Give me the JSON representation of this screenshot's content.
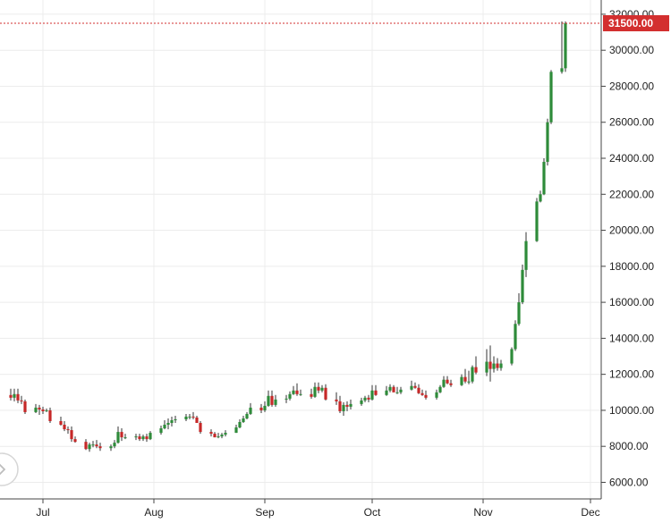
{
  "chart_data": {
    "type": "candlestick",
    "x_tick_labels": [
      "Jul",
      "Aug",
      "Sep",
      "Oct",
      "Nov",
      "Dec"
    ],
    "y_tick_labels": [
      "6000.00",
      "8000.00",
      "10000.00",
      "12000.00",
      "14000.00",
      "16000.00",
      "18000.00",
      "20000.00",
      "22000.00",
      "24000.00",
      "26000.00",
      "28000.00",
      "30000.00",
      "32000.00"
    ],
    "ylim": [
      5000,
      32700
    ],
    "price_line": {
      "value": 31500,
      "label": "31500.00"
    },
    "grid": true,
    "colors": {
      "up": "#2e8b3a",
      "down": "#c62828",
      "wick": "#333333",
      "price_line": "#d32f2f",
      "grid": "#ececec",
      "axis": "#444444"
    },
    "series": [
      {
        "dates": [
          "2020-06-22",
          "2020-06-23",
          "2020-06-24",
          "2020-06-25",
          "2020-06-26",
          "2020-06-29",
          "2020-06-30",
          "2020-07-01",
          "2020-07-02",
          "2020-07-03",
          "2020-07-06",
          "2020-07-07",
          "2020-07-08",
          "2020-07-09",
          "2020-07-10",
          "2020-07-13",
          "2020-07-14",
          "2020-07-15",
          "2020-07-16",
          "2020-07-17",
          "2020-07-20",
          "2020-07-21",
          "2020-07-22",
          "2020-07-23",
          "2020-07-24",
          "2020-07-27",
          "2020-07-28",
          "2020-07-29",
          "2020-07-30",
          "2020-07-31",
          "2020-08-03",
          "2020-08-04",
          "2020-08-05",
          "2020-08-06",
          "2020-08-07",
          "2020-08-10",
          "2020-08-11",
          "2020-08-12",
          "2020-08-13",
          "2020-08-14",
          "2020-08-17",
          "2020-08-18",
          "2020-08-19",
          "2020-08-20",
          "2020-08-21",
          "2020-08-24",
          "2020-08-25",
          "2020-08-26",
          "2020-08-27",
          "2020-08-28",
          "2020-08-31",
          "2020-09-01",
          "2020-09-02",
          "2020-09-03",
          "2020-09-04",
          "2020-09-07",
          "2020-09-08",
          "2020-09-09",
          "2020-09-10",
          "2020-09-11",
          "2020-09-14",
          "2020-09-15",
          "2020-09-16",
          "2020-09-17",
          "2020-09-18",
          "2020-09-21",
          "2020-09-22",
          "2020-09-23",
          "2020-09-24",
          "2020-09-25",
          "2020-09-28",
          "2020-09-29",
          "2020-09-30",
          "2020-10-01",
          "2020-10-02",
          "2020-10-05",
          "2020-10-06",
          "2020-10-07",
          "2020-10-08",
          "2020-10-09",
          "2020-10-12",
          "2020-10-13",
          "2020-10-14",
          "2020-10-15",
          "2020-10-16",
          "2020-10-19",
          "2020-10-20",
          "2020-10-21",
          "2020-10-22",
          "2020-10-23",
          "2020-10-26",
          "2020-10-27",
          "2020-10-28",
          "2020-10-29",
          "2020-10-30",
          "2020-11-02",
          "2020-11-03",
          "2020-11-04",
          "2020-11-05",
          "2020-11-06",
          "2020-11-09",
          "2020-11-10",
          "2020-11-11",
          "2020-11-12",
          "2020-11-13",
          "2020-11-16",
          "2020-11-17",
          "2020-11-18",
          "2020-11-19",
          "2020-11-20",
          "2020-11-23",
          "2020-11-24"
        ],
        "open": [
          10850,
          10700,
          10900,
          10550,
          10500,
          9900,
          10150,
          10050,
          9950,
          10000,
          9400,
          9200,
          8950,
          8900,
          8400,
          8250,
          7850,
          8100,
          8100,
          8000,
          7900,
          8000,
          8200,
          8800,
          8500,
          8500,
          8550,
          8400,
          8550,
          8400,
          8750,
          9000,
          9200,
          9300,
          9450,
          9500,
          9650,
          9650,
          9600,
          9300,
          8800,
          8700,
          8500,
          8550,
          8650,
          8750,
          9050,
          9350,
          9550,
          9800,
          10150,
          10000,
          10250,
          10800,
          10300,
          10600,
          10650,
          10900,
          11100,
          10900,
          10900,
          10750,
          11300,
          11100,
          11250,
          10600,
          10500,
          9950,
          10300,
          10200,
          10350,
          10550,
          10700,
          10600,
          11100,
          10850,
          11100,
          11300,
          11000,
          11000,
          11150,
          11350,
          11250,
          10950,
          10850,
          10700,
          11000,
          11300,
          11700,
          11500,
          11400,
          11850,
          11600,
          11600,
          12400,
          12100,
          12700,
          12300,
          12600,
          12350,
          12600,
          13400,
          14800,
          16000,
          17800,
          19400,
          21600,
          22000,
          23800,
          26000,
          28800,
          29000
        ],
        "high": [
          11200,
          11200,
          11200,
          10800,
          10600,
          10350,
          10300,
          10200,
          10100,
          10150,
          9650,
          9400,
          9100,
          9100,
          8550,
          8400,
          8200,
          8300,
          8350,
          8200,
          8100,
          8350,
          9100,
          9000,
          8700,
          8700,
          8700,
          8650,
          8700,
          8850,
          9150,
          9450,
          9550,
          9650,
          9700,
          9800,
          9800,
          9900,
          9700,
          9400,
          8950,
          8800,
          8750,
          8750,
          8900,
          9200,
          9500,
          9700,
          9900,
          10400,
          10350,
          10500,
          11100,
          11100,
          10850,
          10850,
          11050,
          11350,
          11500,
          11150,
          11200,
          11550,
          11550,
          11400,
          11450,
          11000,
          10800,
          10450,
          10500,
          10600,
          10700,
          10800,
          10850,
          11400,
          11400,
          11350,
          11450,
          11400,
          11300,
          11300,
          11650,
          11550,
          11450,
          11150,
          11100,
          11150,
          11400,
          11900,
          11900,
          11700,
          12000,
          12300,
          12200,
          12500,
          13000,
          13400,
          13600,
          13000,
          12900,
          12800,
          13500,
          15000,
          16500,
          18100,
          19900,
          21800,
          22200,
          24000,
          26200,
          28900,
          31600,
          31600
        ],
        "low": [
          10550,
          10500,
          10400,
          10350,
          9800,
          9850,
          9750,
          9800,
          9900,
          9300,
          9150,
          8850,
          8700,
          8250,
          8200,
          7800,
          7700,
          7950,
          7900,
          7750,
          7750,
          7900,
          8150,
          8300,
          8400,
          8350,
          8300,
          8300,
          8250,
          8350,
          8650,
          8950,
          8950,
          9100,
          9300,
          9400,
          9500,
          9500,
          9300,
          8700,
          8550,
          8500,
          8450,
          8450,
          8550,
          8750,
          9000,
          9300,
          9500,
          9750,
          9850,
          9900,
          10200,
          10200,
          10200,
          10400,
          10550,
          10850,
          10800,
          10800,
          10650,
          10700,
          10950,
          11000,
          10550,
          10300,
          9850,
          9700,
          9950,
          10050,
          10250,
          10450,
          10450,
          10550,
          10800,
          10800,
          11000,
          11000,
          10900,
          10900,
          11100,
          11200,
          10900,
          10800,
          10600,
          10600,
          10950,
          11250,
          11450,
          11300,
          11350,
          11500,
          11450,
          11500,
          12000,
          11900,
          11600,
          12100,
          12200,
          12200,
          12500,
          13300,
          14700,
          15900,
          17400,
          19350,
          21550,
          21950,
          23600,
          25900,
          28700,
          28800
        ],
        "close": [
          10700,
          10900,
          10550,
          10500,
          9900,
          10150,
          10050,
          9950,
          10000,
          9400,
          9200,
          8950,
          8900,
          8400,
          8250,
          7850,
          8100,
          8100,
          8000,
          7900,
          8000,
          8200,
          8800,
          8500,
          8500,
          8550,
          8400,
          8550,
          8400,
          8750,
          9000,
          9200,
          9300,
          9450,
          9500,
          9650,
          9650,
          9600,
          9300,
          8800,
          8700,
          8500,
          8550,
          8650,
          8750,
          9050,
          9350,
          9550,
          9800,
          10150,
          10000,
          10250,
          10800,
          10300,
          10600,
          10650,
          10900,
          11100,
          10900,
          10900,
          10750,
          11300,
          11100,
          11250,
          10600,
          10500,
          9950,
          10300,
          10200,
          10350,
          10550,
          10700,
          10600,
          11100,
          10850,
          11100,
          11300,
          11000,
          11000,
          11150,
          11350,
          11250,
          10950,
          10850,
          10700,
          11000,
          11300,
          11700,
          11500,
          11400,
          11850,
          11600,
          11600,
          12400,
          12100,
          12700,
          12300,
          12600,
          12350,
          12600,
          13400,
          14800,
          16000,
          17800,
          19400,
          21600,
          22000,
          23800,
          26000,
          28800,
          29000,
          31500
        ]
      }
    ]
  }
}
